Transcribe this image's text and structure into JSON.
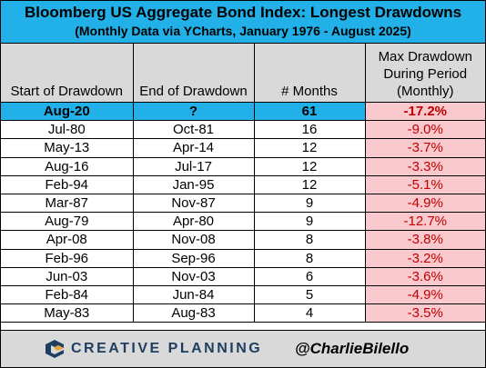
{
  "title": "Bloomberg US Aggregate Bond Index: Longest Drawdowns",
  "subtitle": "(Monthly Data via YCharts, January 1976 - August 2025)",
  "columns": [
    "Start of Drawdown",
    "End of Drawdown",
    "# Months",
    "Max Drawdown During Period (Monthly)"
  ],
  "rows": [
    [
      "Aug-20",
      "?",
      "61",
      "-17.2%"
    ],
    [
      "Jul-80",
      "Oct-81",
      "16",
      "-9.0%"
    ],
    [
      "May-13",
      "Apr-14",
      "12",
      "-3.7%"
    ],
    [
      "Aug-16",
      "Jul-17",
      "12",
      "-3.3%"
    ],
    [
      "Feb-94",
      "Jan-95",
      "12",
      "-5.1%"
    ],
    [
      "Mar-87",
      "Nov-87",
      "9",
      "-4.9%"
    ],
    [
      "Aug-79",
      "Apr-80",
      "9",
      "-12.7%"
    ],
    [
      "Apr-08",
      "Nov-08",
      "8",
      "-3.8%"
    ],
    [
      "Feb-96",
      "Sep-96",
      "8",
      "-3.2%"
    ],
    [
      "Jun-03",
      "Nov-03",
      "6",
      "-3.6%"
    ],
    [
      "Feb-84",
      "Jun-84",
      "5",
      "-4.9%"
    ],
    [
      "May-83",
      "Aug-83",
      "4",
      "-3.5%"
    ]
  ],
  "footer": {
    "brand": "CREATIVE PLANNING",
    "logo_icon": "creative-planning-logo-icon",
    "handle": "@CharlieBilello"
  },
  "colors": {
    "header_blue": "#21b0e8",
    "highlight_row": "#21b0e8",
    "drawdown_fill": "#f9c9cd",
    "drawdown_text": "#c00000",
    "header_gray": "#d9d9d9",
    "brand_navy": "#1e3e5f"
  }
}
